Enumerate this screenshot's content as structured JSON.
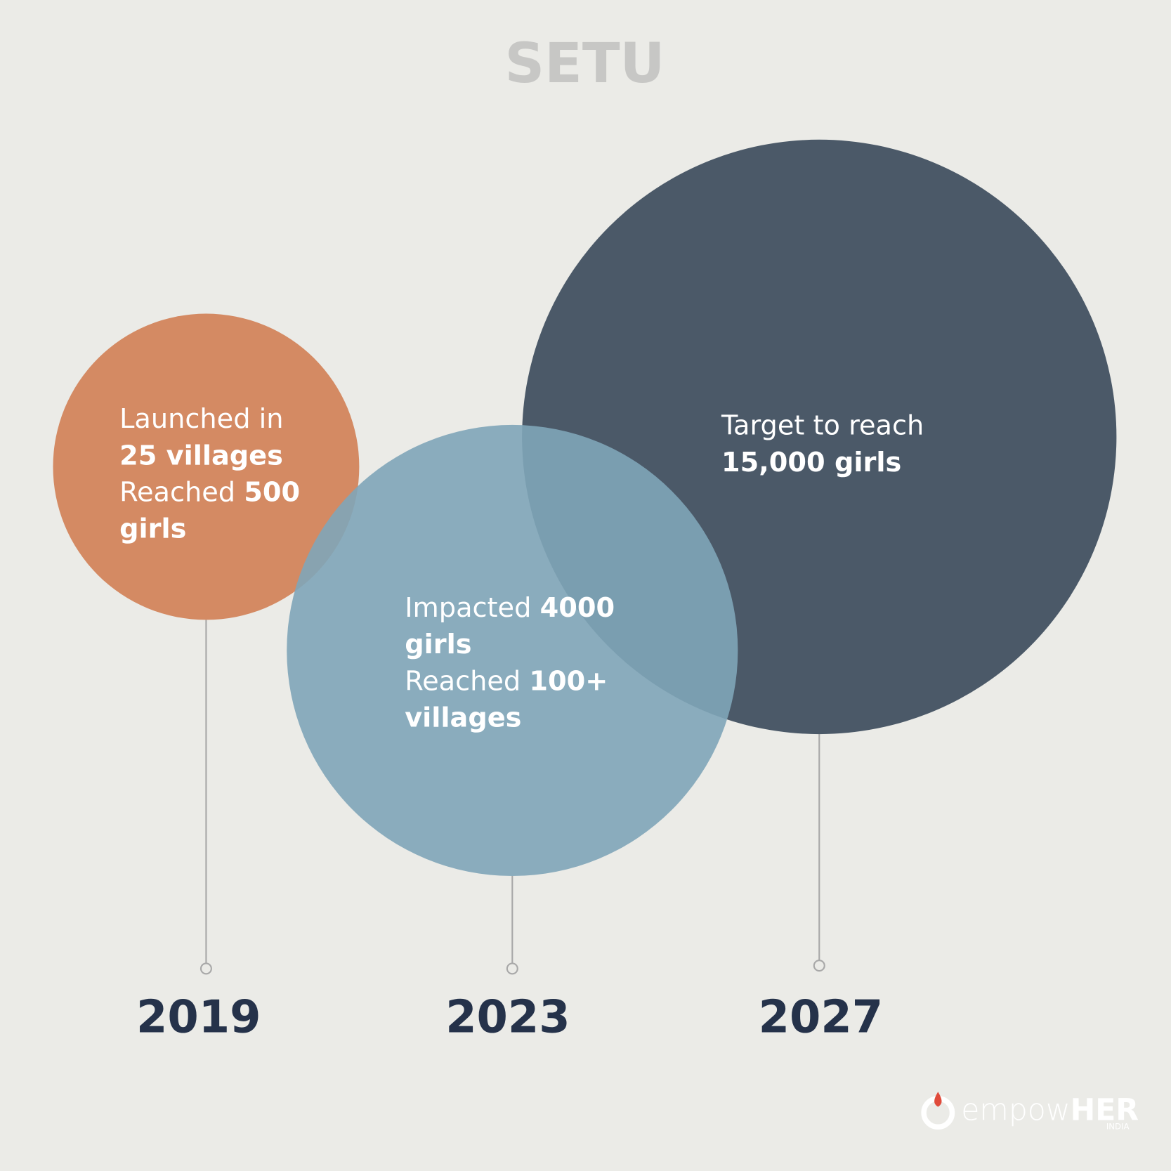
{
  "title": "SETU",
  "milestones": [
    {
      "year": "2019",
      "lines": [
        [
          {
            "text": "Launched in",
            "bold": false
          }
        ],
        [
          {
            "text": "25 villages",
            "bold": true
          }
        ],
        [
          {
            "text": "Reached ",
            "bold": false
          },
          {
            "text": "500",
            "bold": true
          }
        ],
        [
          {
            "text": "girls",
            "bold": true
          }
        ]
      ]
    },
    {
      "year": "2023",
      "lines": [
        [
          {
            "text": "Impacted ",
            "bold": false
          },
          {
            "text": "4000",
            "bold": true
          }
        ],
        [
          {
            "text": "girls",
            "bold": true
          }
        ],
        [
          {
            "text": "Reached ",
            "bold": false
          },
          {
            "text": "100+",
            "bold": true
          }
        ],
        [
          {
            "text": "villages",
            "bold": true
          }
        ]
      ]
    },
    {
      "year": "2027",
      "lines": [
        [
          {
            "text": "Target to reach",
            "bold": false
          }
        ],
        [
          {
            "text": "15,000 girls",
            "bold": true
          }
        ]
      ]
    }
  ],
  "logo": {
    "text": "empow",
    "emphasis": "HER",
    "sub": "INDIA"
  }
}
